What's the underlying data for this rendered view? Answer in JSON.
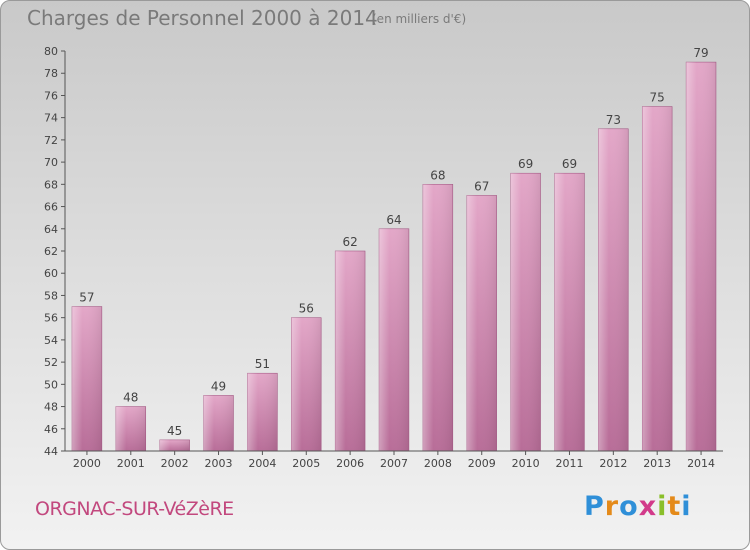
{
  "title": "Charges de Personnel 2000 à 2014",
  "unit": "(en milliers d'€)",
  "commune": "ORGNAC-SUR-VéZèRE",
  "logo": {
    "letters": [
      "P",
      "r",
      "o",
      "x",
      "i",
      "t",
      "i"
    ],
    "colors": [
      "#2f8fd8",
      "#e48a1a",
      "#2f8fd8",
      "#d23a8a",
      "#8abf2a",
      "#e48a1a",
      "#2f8fd8"
    ]
  },
  "colors": {
    "bar": "#d993bb",
    "bar_dark": "#b86d98",
    "axis": "#555555",
    "title": "#7a7a7a",
    "commune": "#c2487e"
  },
  "chart_data": {
    "type": "bar",
    "title": "Charges de Personnel 2000 à 2014",
    "unit": "(en milliers d'€)",
    "categories": [
      "2000",
      "2001",
      "2002",
      "2003",
      "2004",
      "2005",
      "2006",
      "2007",
      "2008",
      "2009",
      "2010",
      "2011",
      "2012",
      "2013",
      "2014"
    ],
    "values": [
      57,
      48,
      45,
      49,
      51,
      56,
      62,
      64,
      68,
      67,
      69,
      69,
      73,
      75,
      79
    ],
    "ylim": [
      44,
      80
    ],
    "yticks": [
      "44",
      "46",
      "48",
      "50",
      "52",
      "54",
      "56",
      "58",
      "60",
      "62",
      "64",
      "66",
      "68",
      "70",
      "72",
      "74",
      "76",
      "78",
      "80"
    ],
    "grid": false,
    "legend": "none"
  }
}
